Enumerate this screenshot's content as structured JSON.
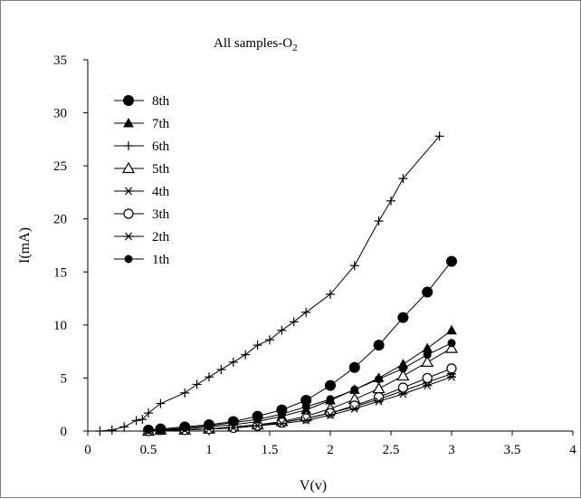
{
  "chart_data": {
    "type": "line",
    "title_main": "All samples-O",
    "title_sub": "2",
    "xlabel": "V(v)",
    "ylabel": "I(mA)",
    "xlim": [
      0,
      4
    ],
    "ylim": [
      0,
      35
    ],
    "x_ticks": [
      "0",
      "0.5",
      "1",
      "1.5",
      "2",
      "2.5",
      "3",
      "3.5",
      "4"
    ],
    "y_ticks": [
      "0",
      "5",
      "10",
      "15",
      "20",
      "25",
      "30",
      "35"
    ],
    "grid": false,
    "legend_position": "top-left",
    "series": [
      {
        "name": "8th",
        "marker": "filled-circle-large",
        "color": "#000000",
        "x": [
          0.5,
          0.6,
          0.8,
          1.0,
          1.2,
          1.4,
          1.6,
          1.8,
          2.0,
          2.2,
          2.4,
          2.6,
          2.8,
          3.0
        ],
        "y": [
          0.1,
          0.2,
          0.4,
          0.6,
          0.9,
          1.4,
          2.0,
          2.9,
          4.3,
          6.0,
          8.1,
          10.7,
          13.1,
          16.0
        ]
      },
      {
        "name": "7th",
        "marker": "filled-triangle",
        "color": "#000000",
        "x": [
          0.5,
          0.6,
          0.8,
          1.0,
          1.2,
          1.4,
          1.6,
          1.8,
          2.0,
          2.2,
          2.4,
          2.6,
          2.8,
          3.0
        ],
        "y": [
          0.1,
          0.1,
          0.2,
          0.4,
          0.6,
          0.9,
          1.4,
          2.0,
          2.9,
          3.9,
          5.0,
          6.3,
          7.8,
          9.5
        ]
      },
      {
        "name": "6th",
        "marker": "plus",
        "color": "#000000",
        "x": [
          0.1,
          0.2,
          0.3,
          0.4,
          0.45,
          0.5,
          0.6,
          0.8,
          0.9,
          1.0,
          1.1,
          1.2,
          1.3,
          1.4,
          1.5,
          1.6,
          1.7,
          1.8,
          2.0,
          2.2,
          2.4,
          2.5,
          2.6,
          2.9
        ],
        "y": [
          0.0,
          0.1,
          0.4,
          1.0,
          1.1,
          1.7,
          2.6,
          3.6,
          4.4,
          5.1,
          5.8,
          6.5,
          7.2,
          8.1,
          8.6,
          9.5,
          10.3,
          11.2,
          12.9,
          15.6,
          19.8,
          21.7,
          23.8,
          27.8
        ]
      },
      {
        "name": "5th",
        "marker": "open-triangle",
        "color": "#000000",
        "x": [
          0.5,
          0.6,
          0.8,
          1.0,
          1.2,
          1.4,
          1.6,
          1.8,
          2.0,
          2.2,
          2.4,
          2.6,
          2.8,
          3.0
        ],
        "y": [
          0.0,
          0.1,
          0.1,
          0.2,
          0.4,
          0.6,
          0.9,
          1.4,
          2.1,
          3.0,
          4.0,
          5.2,
          6.5,
          7.8
        ]
      },
      {
        "name": "4th",
        "marker": "asterisk",
        "color": "#000000",
        "x": [
          0.5,
          0.6,
          0.8,
          1.0,
          1.2,
          1.4,
          1.6,
          1.8,
          2.0,
          2.2,
          2.4,
          2.6,
          2.8,
          3.0
        ],
        "y": [
          0.0,
          0.0,
          0.1,
          0.2,
          0.3,
          0.5,
          0.8,
          1.2,
          1.7,
          2.3,
          3.0,
          3.8,
          4.6,
          5.4
        ]
      },
      {
        "name": "3th",
        "marker": "open-circle",
        "color": "#000000",
        "x": [
          0.5,
          0.6,
          0.8,
          1.0,
          1.2,
          1.4,
          1.6,
          1.8,
          2.0,
          2.2,
          2.4,
          2.6,
          2.8,
          3.0
        ],
        "y": [
          0.0,
          0.1,
          0.1,
          0.2,
          0.3,
          0.5,
          0.8,
          1.2,
          1.7,
          2.4,
          3.2,
          4.1,
          5.0,
          5.9
        ]
      },
      {
        "name": "2th",
        "marker": "asterisk",
        "color": "#000000",
        "x": [
          0.5,
          0.6,
          0.8,
          1.0,
          1.2,
          1.4,
          1.6,
          1.8,
          2.0,
          2.2,
          2.4,
          2.6,
          2.8,
          3.0
        ],
        "y": [
          0.0,
          0.0,
          0.1,
          0.2,
          0.3,
          0.5,
          0.7,
          1.0,
          1.5,
          2.1,
          2.8,
          3.5,
          4.3,
          5.1
        ]
      },
      {
        "name": "1th",
        "marker": "filled-circle-small",
        "color": "#000000",
        "x": [
          0.5,
          0.6,
          0.8,
          1.0,
          1.2,
          1.4,
          1.6,
          1.8,
          2.0,
          2.2,
          2.4,
          2.6,
          2.8,
          3.0
        ],
        "y": [
          0.1,
          0.1,
          0.3,
          0.5,
          0.8,
          1.1,
          1.6,
          2.3,
          3.0,
          3.9,
          4.9,
          5.9,
          7.2,
          8.3
        ]
      }
    ]
  }
}
